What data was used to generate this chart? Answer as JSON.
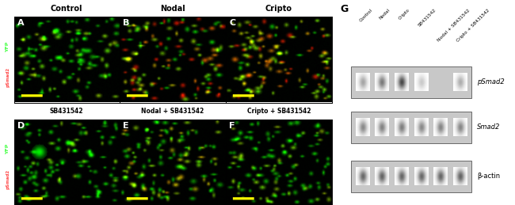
{
  "panel_labels": [
    "A",
    "B",
    "C",
    "D",
    "E",
    "F"
  ],
  "top_titles": [
    "Control",
    "Nodal",
    "Cripto"
  ],
  "bottom_titles": [
    "SB431542",
    "Nodal + SB431542",
    "Cripto + SB431542"
  ],
  "wb_label": "G",
  "lane_labels": [
    "Control",
    "Nodal",
    "Cripto",
    "SB431542",
    "Nodal + SB431542",
    "Cripto + SB431542"
  ],
  "row_labels": [
    "pSmad2",
    "Smad2",
    "β-actin"
  ],
  "figure_width": 6.5,
  "figure_height": 2.59,
  "dpi": 100,
  "psmad2_intensities": [
    0.42,
    0.62,
    0.85,
    0.25,
    0.03,
    0.38
  ],
  "smad2_intensities": [
    0.55,
    0.58,
    0.6,
    0.55,
    0.57,
    0.56
  ],
  "bactin_intensities": [
    0.7,
    0.72,
    0.71,
    0.7,
    0.71,
    0.72
  ]
}
